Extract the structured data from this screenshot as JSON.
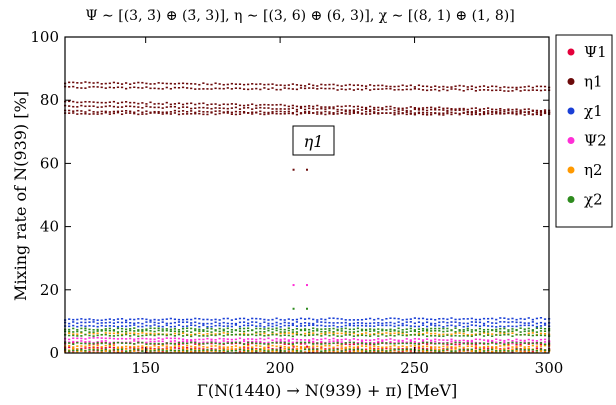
{
  "chart_data": {
    "type": "scatter",
    "title": "Ψ ∼ [(3, 3̄) ⊕ (3̄, 3)],   η ∼ [(3, 6) ⊕ (6, 3)],   χ ∼ [(8, 1) ⊕ (1, 8)]",
    "xlabel": "Γ(N(1440) → N(939) + π) [MeV]",
    "ylabel": "Mixing rate of N(939) [%]",
    "xlim": [
      120,
      300
    ],
    "ylim": [
      0,
      100
    ],
    "xticks": [
      150,
      200,
      250,
      300
    ],
    "yticks": [
      0,
      20,
      40,
      60,
      80,
      100
    ],
    "grid": false,
    "legend_position": "outside-right",
    "annotation": "η1",
    "series": [
      {
        "name": "Ψ1",
        "color": "#e4003b",
        "bands": [
          {
            "x": [
              120,
              300
            ],
            "y": [
              0.5,
              0.5
            ]
          },
          {
            "x": [
              120,
              300
            ],
            "y": [
              1.5,
              1.2
            ]
          },
          {
            "x": [
              120,
              300
            ],
            "y": [
              3.0,
              2.8
            ]
          }
        ],
        "points": [
          {
            "x": 205,
            "y": 2.0
          },
          {
            "x": 210,
            "y": 2.0
          }
        ]
      },
      {
        "name": "η1",
        "color": "#6b0a0a",
        "bands": [
          {
            "x": [
              120,
              300
            ],
            "y": [
              75.8,
              75.5
            ]
          },
          {
            "x": [
              120,
              300
            ],
            "y": [
              76.5,
              75.8
            ]
          },
          {
            "x": [
              120,
              300
            ],
            "y": [
              78.0,
              76.3
            ]
          },
          {
            "x": [
              120,
              300
            ],
            "y": [
              79.5,
              76.8
            ]
          },
          {
            "x": [
              120,
              300
            ],
            "y": [
              84.0,
              83.0
            ]
          },
          {
            "x": [
              120,
              300
            ],
            "y": [
              85.5,
              84.0
            ]
          }
        ],
        "points": [
          {
            "x": 205,
            "y": 58
          },
          {
            "x": 210,
            "y": 58
          }
        ]
      },
      {
        "name": "χ1",
        "color": "#1a3fd6",
        "bands": [
          {
            "x": [
              120,
              300
            ],
            "y": [
              10.5,
              10.8
            ]
          },
          {
            "x": [
              120,
              300
            ],
            "y": [
              9.5,
              9.5
            ]
          },
          {
            "x": [
              120,
              300
            ],
            "y": [
              8.5,
              8.5
            ]
          }
        ],
        "points": []
      },
      {
        "name": "Ψ2",
        "color": "#ff2ed6",
        "bands": [
          {
            "x": [
              120,
              300
            ],
            "y": [
              4.5,
              4.0
            ]
          },
          {
            "x": [
              120,
              300
            ],
            "y": [
              3.5,
              3.3
            ]
          }
        ],
        "points": [
          {
            "x": 205,
            "y": 21.5
          },
          {
            "x": 210,
            "y": 21.5
          }
        ]
      },
      {
        "name": "η2",
        "color": "#ff9900",
        "bands": [
          {
            "x": [
              120,
              300
            ],
            "y": [
              2.0,
              2.0
            ]
          },
          {
            "x": [
              120,
              300
            ],
            "y": [
              1.0,
              1.0
            ]
          },
          {
            "x": [
              120,
              300
            ],
            "y": [
              0.3,
              0.3
            ]
          },
          {
            "x": [
              120,
              300
            ],
            "y": [
              6.0,
              6.0
            ]
          }
        ],
        "points": []
      },
      {
        "name": "χ2",
        "color": "#2e8b1e",
        "bands": [
          {
            "x": [
              120,
              300
            ],
            "y": [
              7.5,
              7.5
            ]
          },
          {
            "x": [
              120,
              300
            ],
            "y": [
              6.8,
              6.8
            ]
          },
          {
            "x": [
              120,
              300
            ],
            "y": [
              5.5,
              5.5
            ]
          },
          {
            "x": [
              120,
              300
            ],
            "y": [
              3.0,
              3.0
            ]
          },
          {
            "x": [
              120,
              300
            ],
            "y": [
              0.8,
              0.8
            ]
          }
        ],
        "points": [
          {
            "x": 205,
            "y": 14
          },
          {
            "x": 210,
            "y": 14
          }
        ]
      }
    ]
  }
}
